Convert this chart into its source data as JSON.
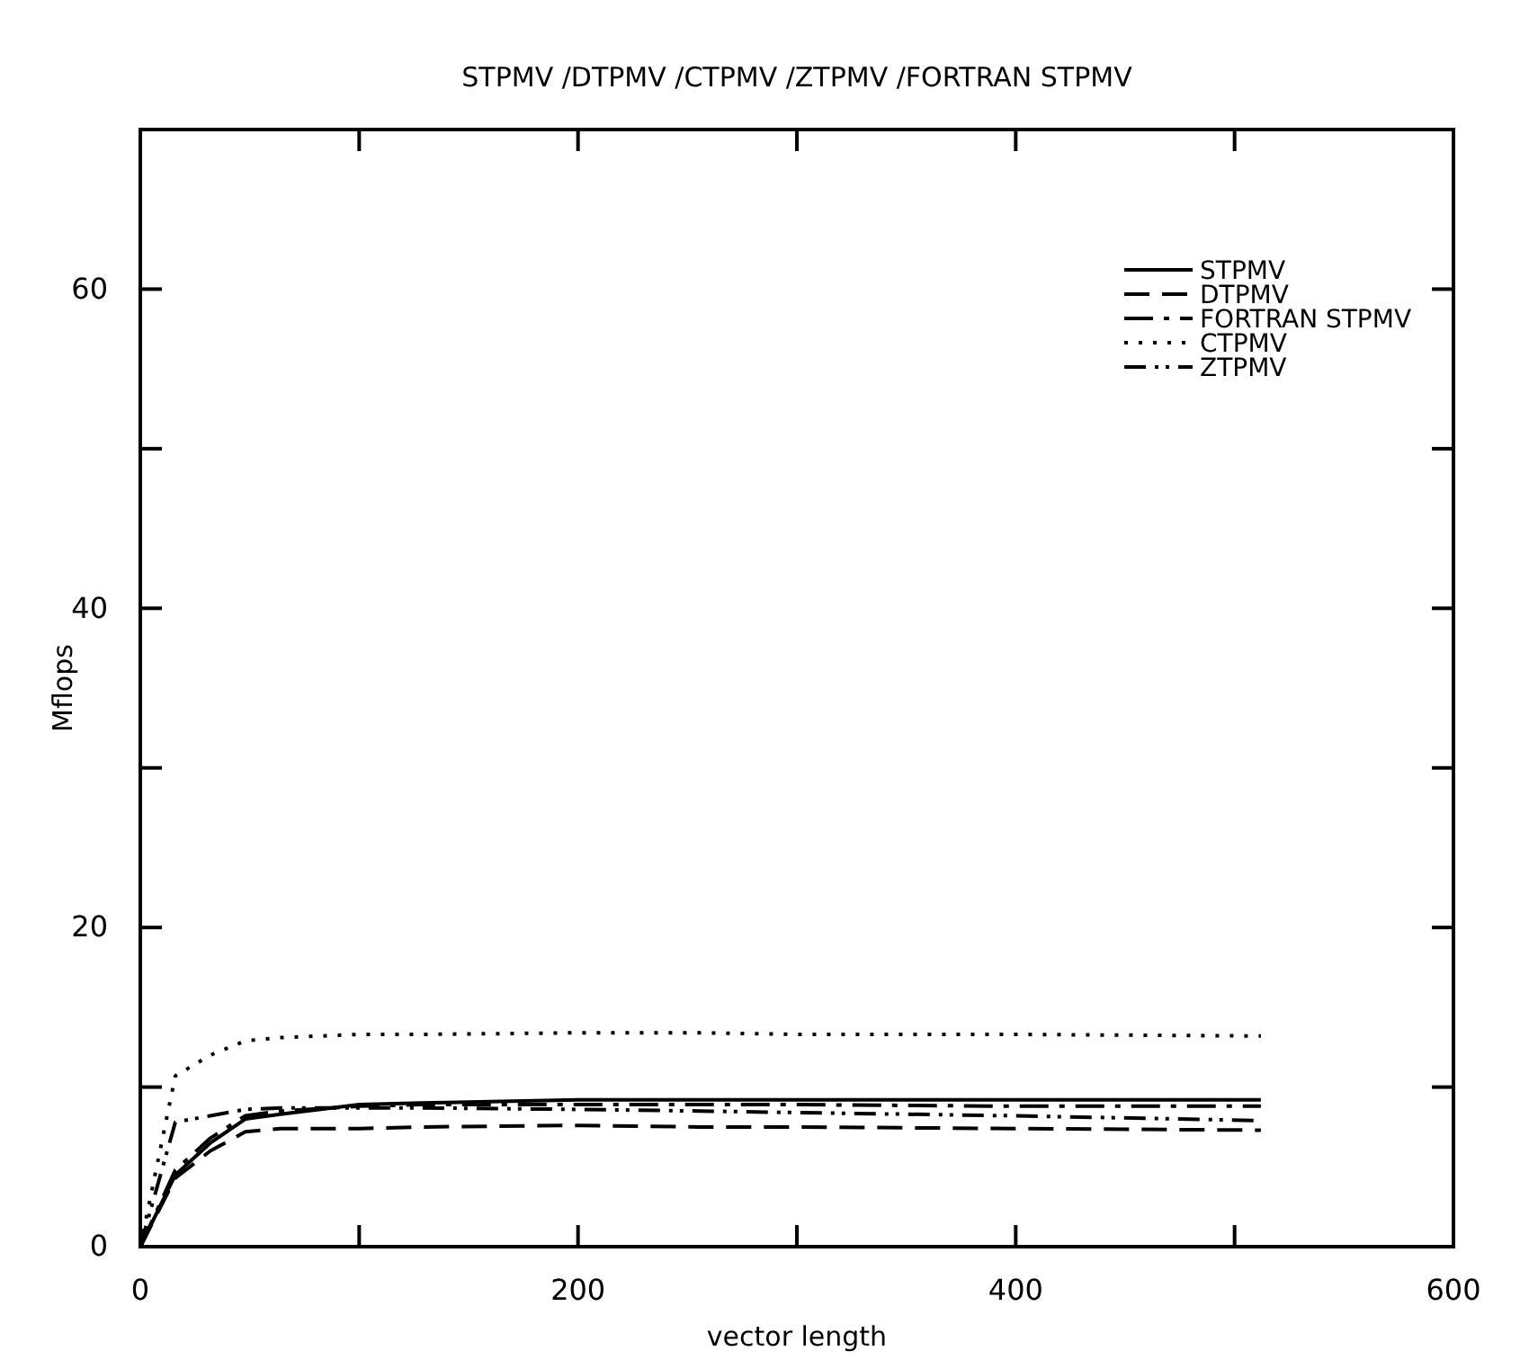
{
  "chart_data": {
    "type": "line",
    "title": "STPMV /DTPMV /CTPMV /ZTPMV /FORTRAN STPMV",
    "xlabel": "vector length",
    "ylabel": "Mflops",
    "xlim": [
      0,
      600
    ],
    "xticks": [
      0,
      {
        "value": 100,
        "label": null
      },
      200,
      {
        "value": 300,
        "label": null
      },
      400,
      {
        "value": 500,
        "label": null
      },
      600
    ],
    "ylim": [
      0,
      70
    ],
    "yticks": [
      0,
      {
        "value": 10,
        "label": null
      },
      20,
      {
        "value": 30,
        "label": null
      },
      40,
      {
        "value": 50,
        "label": null
      },
      60,
      {
        "value": 70,
        "label": null
      }
    ],
    "x": [
      0,
      16,
      32,
      48,
      64,
      100,
      128,
      200,
      256,
      300,
      400,
      512
    ],
    "legend": "top right",
    "grid": false,
    "series": [
      {
        "name": "STPMV",
        "color": "#000000",
        "line_style": "solid",
        "values": [
          0,
          4.5,
          6.5,
          8.0,
          8.3,
          8.9,
          9.0,
          9.2,
          9.2,
          9.2,
          9.2,
          9.2
        ]
      },
      {
        "name": "DTPMV",
        "color": "#000000",
        "line_style": "dashed",
        "values": [
          0,
          4.3,
          6.0,
          7.2,
          7.4,
          7.4,
          7.5,
          7.6,
          7.5,
          7.5,
          7.4,
          7.3
        ]
      },
      {
        "name": "FORTRAN STPMV",
        "color": "#000000",
        "line_style": "dashdot",
        "values": [
          0,
          4.8,
          6.8,
          8.2,
          8.5,
          8.8,
          8.9,
          8.9,
          8.9,
          8.9,
          8.8,
          8.8
        ]
      },
      {
        "name": "CTPMV",
        "color": "#000000",
        "line_style": "dotted",
        "values": [
          0,
          10.7,
          12.0,
          12.9,
          13.1,
          13.3,
          13.3,
          13.4,
          13.4,
          13.3,
          13.3,
          13.2
        ]
      },
      {
        "name": "ZTPMV",
        "color": "#000000",
        "line_style": "dashdotdot",
        "values": [
          0,
          7.8,
          8.2,
          8.6,
          8.7,
          8.7,
          8.7,
          8.6,
          8.5,
          8.4,
          8.2,
          7.9
        ]
      }
    ]
  }
}
